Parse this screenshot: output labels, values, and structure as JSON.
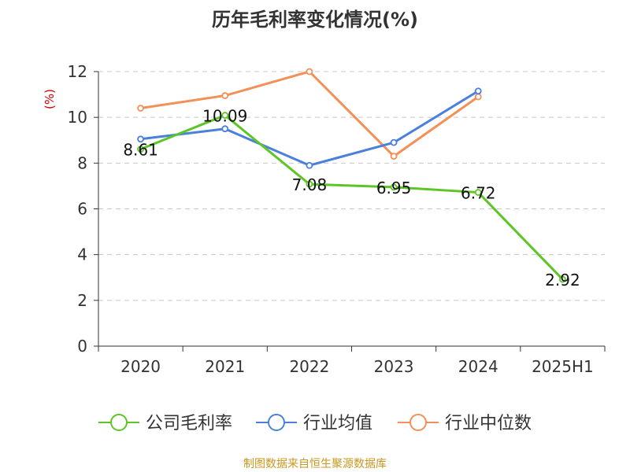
{
  "chart_data": {
    "type": "line",
    "title": "历年毛利率变化情况(%)",
    "ylabel": "(%)",
    "xlabel": "",
    "categories": [
      "2020",
      "2021",
      "2022",
      "2023",
      "2024",
      "2025H1"
    ],
    "ylim": [
      0,
      12
    ],
    "yticks": [
      0,
      2,
      4,
      6,
      8,
      10,
      12
    ],
    "grid": true,
    "legend_position": "bottom",
    "series": [
      {
        "name": "公司毛利率",
        "color": "#5ec527",
        "values": [
          8.61,
          10.09,
          7.08,
          6.95,
          6.72,
          2.92
        ],
        "labels": [
          "8.61",
          "10.09",
          "7.08",
          "6.95",
          "6.72",
          "2.92"
        ]
      },
      {
        "name": "行业均值",
        "color": "#4a7fdc",
        "values": [
          9.05,
          9.5,
          7.9,
          8.9,
          11.15,
          null
        ]
      },
      {
        "name": "行业中位数",
        "color": "#f39058",
        "values": [
          10.4,
          10.95,
          12.0,
          8.3,
          10.9,
          null
        ]
      }
    ]
  },
  "source": "制图数据来自恒生聚源数据库"
}
